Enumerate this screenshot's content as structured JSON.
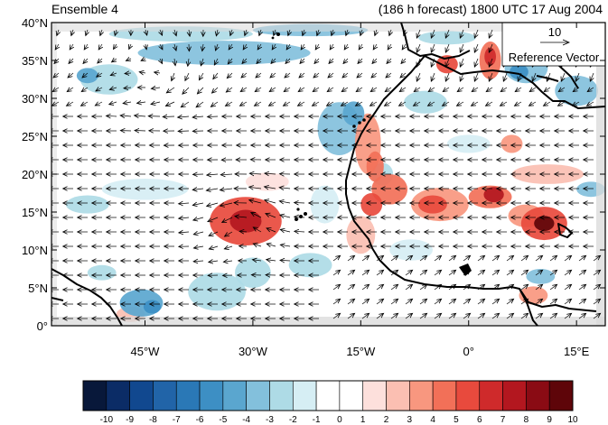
{
  "header": {
    "ensemble_label": "Ensemble 4",
    "forecast_label": "(186 h forecast) 1800 UTC 17 Aug 2004"
  },
  "map": {
    "lon_range": [
      -58,
      19
    ],
    "lat_range": [
      0,
      40
    ],
    "lat_ticks": [
      {
        "value": 0,
        "label": "0°"
      },
      {
        "value": 5,
        "label": "5°N"
      },
      {
        "value": 10,
        "label": "10°N"
      },
      {
        "value": 15,
        "label": "15°N"
      },
      {
        "value": 20,
        "label": "20°N"
      },
      {
        "value": 25,
        "label": "25°N"
      },
      {
        "value": 30,
        "label": "30°N"
      },
      {
        "value": 35,
        "label": "35°N"
      },
      {
        "value": 40,
        "label": "40°N"
      }
    ],
    "lon_ticks": [
      {
        "value": -45,
        "label": "45°W"
      },
      {
        "value": -30,
        "label": "30°W"
      },
      {
        "value": -15,
        "label": "15°W"
      },
      {
        "value": 0,
        "label": "0°"
      },
      {
        "value": 15,
        "label": "15°E"
      }
    ],
    "reference_vector": {
      "magnitude": "10",
      "label": "Reference Vector"
    },
    "anomaly_blobs": [
      {
        "lon": -31,
        "lat": 13.8,
        "rx": 5,
        "ry": 3.2,
        "level": 6
      },
      {
        "lon": -31,
        "lat": 13.8,
        "rx": 2.2,
        "ry": 1.5,
        "level": 8
      },
      {
        "lon": -28,
        "lat": 19,
        "rx": 3,
        "ry": 1.2,
        "level": 2
      },
      {
        "lon": 10.5,
        "lat": 13.5,
        "rx": 3.2,
        "ry": 2.2,
        "level": 6
      },
      {
        "lon": 10.5,
        "lat": 13.5,
        "rx": 1.4,
        "ry": 1,
        "level": 10
      },
      {
        "lon": 8,
        "lat": 14.5,
        "rx": 2.5,
        "ry": 1.5,
        "level": 4
      },
      {
        "lon": 3,
        "lat": 17,
        "rx": 3,
        "ry": 1.5,
        "level": 5
      },
      {
        "lon": 3.5,
        "lat": 17.3,
        "rx": 1.4,
        "ry": 1,
        "level": 8
      },
      {
        "lon": -4,
        "lat": 16,
        "rx": 4,
        "ry": 2.2,
        "level": 4
      },
      {
        "lon": -5,
        "lat": 16,
        "rx": 2,
        "ry": 1.2,
        "level": 6
      },
      {
        "lon": -11,
        "lat": 18,
        "rx": 2.5,
        "ry": 2,
        "level": 5
      },
      {
        "lon": -13.5,
        "lat": 16,
        "rx": 1.5,
        "ry": 1.5,
        "level": 6
      },
      {
        "lon": -14,
        "lat": 24,
        "rx": 1.8,
        "ry": 4,
        "level": 4
      },
      {
        "lon": -13,
        "lat": 21,
        "rx": 1.2,
        "ry": 2,
        "level": 5
      },
      {
        "lon": -15,
        "lat": 12,
        "rx": 2,
        "ry": 2.5,
        "level": 3
      },
      {
        "lon": 11,
        "lat": 20,
        "rx": 5,
        "ry": 1.3,
        "level": 3
      },
      {
        "lon": 6,
        "lat": 24,
        "rx": 1.5,
        "ry": 1.2,
        "level": 4
      },
      {
        "lon": 3,
        "lat": 35,
        "rx": 1.5,
        "ry": 2.5,
        "level": 5
      },
      {
        "lon": 3,
        "lat": 35.5,
        "rx": 0.8,
        "ry": 1.2,
        "level": 7
      },
      {
        "lon": -3,
        "lat": 34.5,
        "rx": 1.5,
        "ry": 1.2,
        "level": 6
      },
      {
        "lon": 12,
        "lat": 38,
        "rx": 2,
        "ry": 1.2,
        "level": 3
      },
      {
        "lon": 9,
        "lat": 4,
        "rx": 2,
        "ry": 1.2,
        "level": 4
      },
      {
        "lon": -47,
        "lat": 1.5,
        "rx": 2,
        "ry": 1,
        "level": 3
      },
      {
        "lon": -39,
        "lat": 22,
        "rx": 8,
        "ry": 0.8,
        "level": 1
      },
      {
        "lon": -45,
        "lat": 27,
        "rx": 6,
        "ry": 0.8,
        "level": 1
      },
      {
        "lon": -20,
        "lat": 31.5,
        "rx": 4,
        "ry": 1,
        "level": 1
      },
      {
        "lon": -34,
        "lat": 36,
        "rx": 12,
        "ry": 1.6,
        "level": -3
      },
      {
        "lon": -40,
        "lat": 38.5,
        "rx": 10,
        "ry": 1,
        "level": -2
      },
      {
        "lon": -22,
        "lat": 39,
        "rx": 8,
        "ry": 0.8,
        "level": -3
      },
      {
        "lon": -50,
        "lat": 32.5,
        "rx": 4,
        "ry": 2,
        "level": -2
      },
      {
        "lon": -53,
        "lat": 33,
        "rx": 1.5,
        "ry": 1,
        "level": -4
      },
      {
        "lon": -18,
        "lat": 26,
        "rx": 3,
        "ry": 3.5,
        "level": -3
      },
      {
        "lon": -16,
        "lat": 28,
        "rx": 1.5,
        "ry": 1.6,
        "level": -4
      },
      {
        "lon": -12,
        "lat": 20,
        "rx": 1.5,
        "ry": 1.5,
        "level": -2
      },
      {
        "lon": -45.5,
        "lat": 3,
        "rx": 3,
        "ry": 1.8,
        "level": -4
      },
      {
        "lon": -44,
        "lat": 2.5,
        "rx": 1.2,
        "ry": 0.9,
        "level": -5
      },
      {
        "lon": -35,
        "lat": 4.5,
        "rx": 4,
        "ry": 2.5,
        "level": -2
      },
      {
        "lon": -30,
        "lat": 7,
        "rx": 2.5,
        "ry": 2,
        "level": -2
      },
      {
        "lon": -53,
        "lat": 16,
        "rx": 3,
        "ry": 1.2,
        "level": -2
      },
      {
        "lon": -51,
        "lat": 7,
        "rx": 2,
        "ry": 1,
        "level": -2
      },
      {
        "lon": -22,
        "lat": 8,
        "rx": 3,
        "ry": 1.6,
        "level": -2
      },
      {
        "lon": 15,
        "lat": 31,
        "rx": 3,
        "ry": 2,
        "level": -3
      },
      {
        "lon": 8,
        "lat": 34,
        "rx": 3,
        "ry": 2,
        "level": -3
      },
      {
        "lon": 7,
        "lat": 33.5,
        "rx": 1.3,
        "ry": 1,
        "level": -5
      },
      {
        "lon": 10,
        "lat": 6.5,
        "rx": 2,
        "ry": 1,
        "level": -3
      },
      {
        "lon": 17,
        "lat": 18,
        "rx": 2,
        "ry": 1,
        "level": -3
      },
      {
        "lon": -6,
        "lat": 29.5,
        "rx": 3,
        "ry": 1.5,
        "level": -2
      },
      {
        "lon": -3,
        "lat": 38,
        "rx": 4,
        "ry": 0.9,
        "level": -2
      },
      {
        "lon": -45,
        "lat": 18,
        "rx": 6,
        "ry": 1.4,
        "level": -1
      },
      {
        "lon": -20,
        "lat": 16,
        "rx": 2,
        "ry": 2.5,
        "level": -1
      },
      {
        "lon": -8,
        "lat": 10,
        "rx": 3,
        "ry": 1.4,
        "level": -1
      },
      {
        "lon": 0,
        "lat": 24,
        "rx": 3,
        "ry": 1.2,
        "level": -1
      }
    ]
  },
  "colorbar": {
    "labels": [
      "-10",
      "-9",
      "-8",
      "-7",
      "-6",
      "-5",
      "-4",
      "-3",
      "-2",
      "-1",
      "0",
      "1",
      "2",
      "3",
      "4",
      "5",
      "6",
      "7",
      "8",
      "9",
      "10"
    ],
    "colors": [
      "#08183a",
      "#0b2c66",
      "#11488f",
      "#2164a8",
      "#2a78b6",
      "#3d8fc4",
      "#5aa6cf",
      "#83c0dc",
      "#aedbe6",
      "#d6eef4",
      "#ffffff",
      "#ffffff",
      "#fde0dc",
      "#fbbfb2",
      "#f8977f",
      "#f27058",
      "#e84a3d",
      "#cf2a2b",
      "#b3171f",
      "#8a0b14",
      "#5e0509"
    ]
  }
}
